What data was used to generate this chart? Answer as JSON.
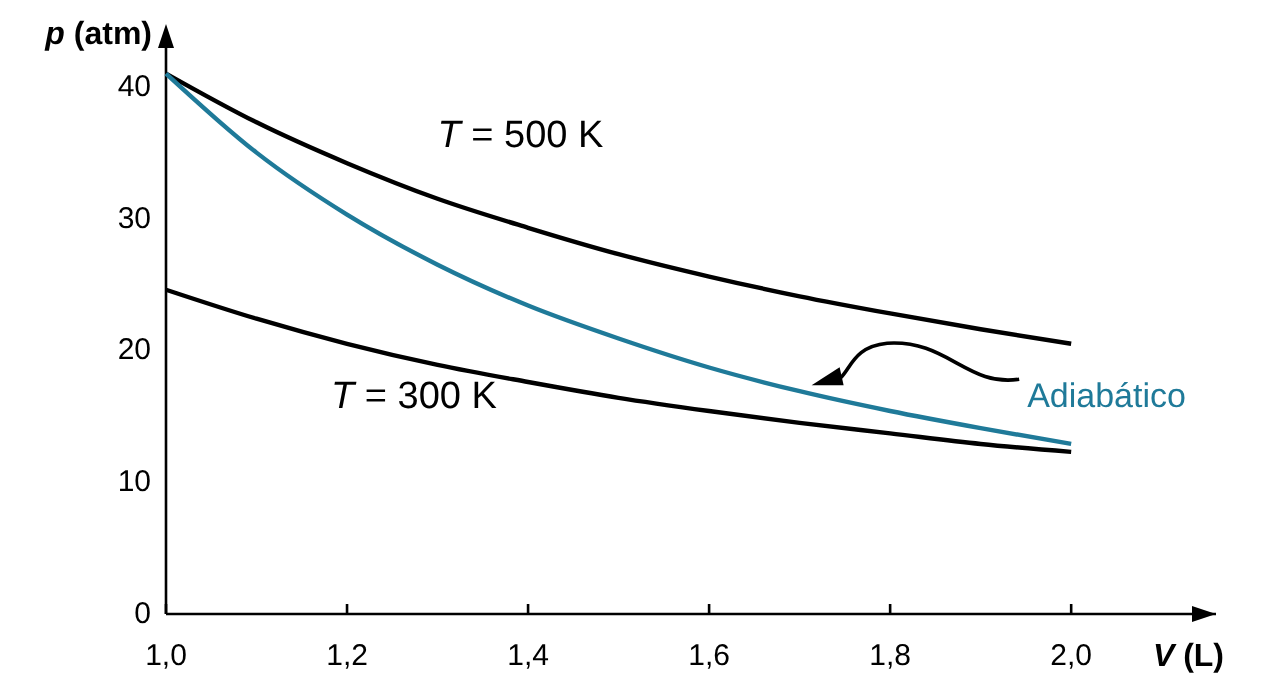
{
  "chart_data": {
    "type": "line",
    "xlabel": "V (L)",
    "ylabel": "p (atm)",
    "x": [
      1.0,
      1.1,
      1.2,
      1.3,
      1.4,
      1.5,
      1.6,
      1.7,
      1.8,
      1.9,
      2.0
    ],
    "series": [
      {
        "name": "T = 500 K",
        "color": "#000000",
        "values": [
          41,
          37.3,
          34.2,
          31.5,
          29.3,
          27.3,
          25.6,
          24.1,
          22.8,
          21.6,
          20.5
        ]
      },
      {
        "name": "T = 300 K",
        "color": "#000000",
        "values": [
          24.6,
          22.4,
          20.5,
          18.9,
          17.6,
          16.4,
          15.4,
          14.5,
          13.7,
          12.9,
          12.3
        ]
      },
      {
        "name": "Adiabático",
        "color": "#1f7a99",
        "values": [
          41,
          35.0,
          30.3,
          26.5,
          23.4,
          20.9,
          18.7,
          16.9,
          15.4,
          14.1,
          12.9
        ]
      }
    ],
    "xlim": [
      1,
      2.16
    ],
    "ylim": [
      0,
      44
    ],
    "xticks": [
      {
        "value": 1,
        "label": "1,0"
      },
      {
        "value": 1.2,
        "label": "1,2"
      },
      {
        "value": 1.4,
        "label": "1,4"
      },
      {
        "value": 1.6,
        "label": "1,6"
      },
      {
        "value": 1.8,
        "label": "1,8"
      },
      {
        "value": 2,
        "label": "2,0"
      }
    ],
    "yticks": [
      0,
      10,
      20,
      30,
      40
    ],
    "grid": false,
    "marker": "none",
    "line_style": "solid"
  }
}
